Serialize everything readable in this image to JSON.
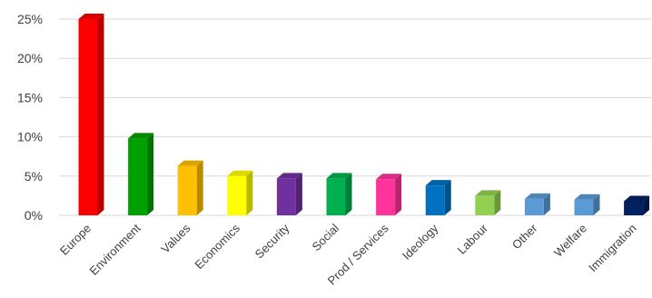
{
  "chart_data": {
    "type": "bar",
    "categories": [
      "Europe",
      "Environment",
      "Values",
      "Economics",
      "Security",
      "Social",
      "Prod / Services",
      "Ideology",
      "Labour",
      "Other",
      "Welfare",
      "Immigration"
    ],
    "values": [
      25,
      9.8,
      6.3,
      5.0,
      4.7,
      4.7,
      4.6,
      3.8,
      2.5,
      2.1,
      2.0,
      1.8
    ],
    "colors": [
      "#ff0000",
      "#00a000",
      "#ffc000",
      "#ffff00",
      "#7030a0",
      "#00b050",
      "#ff3399",
      "#0070c0",
      "#92d050",
      "#5b9bd5",
      "#5b9bd5",
      "#002060"
    ],
    "yticks": [
      "0%",
      "5%",
      "10%",
      "15%",
      "20%",
      "25%"
    ],
    "ylim": [
      0,
      25
    ],
    "grid": true,
    "style": "3d-column",
    "title": "",
    "xlabel": "",
    "ylabel": ""
  }
}
